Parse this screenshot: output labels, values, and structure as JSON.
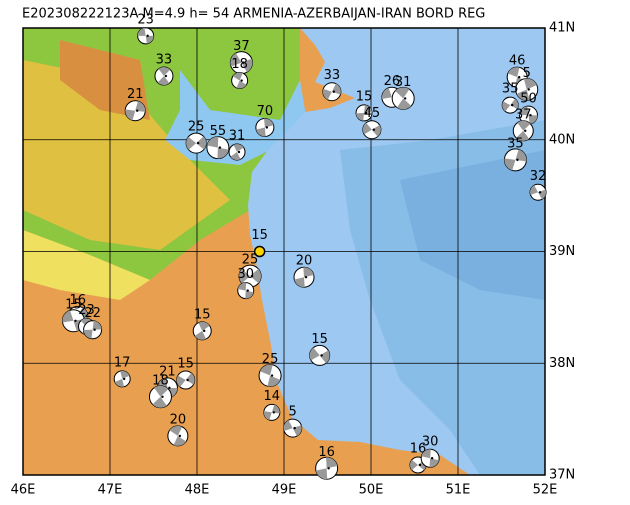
{
  "header": {
    "title": "E202308222123A M=4.9 h= 54 ARMENIA-AZERBAIJAN-IRAN BORD REG"
  },
  "map": {
    "lon_range": [
      46,
      52
    ],
    "lat_range": [
      37,
      41
    ],
    "lon_ticks": [
      {
        "value": 46,
        "label": "46E"
      },
      {
        "value": 47,
        "label": "47E"
      },
      {
        "value": 48,
        "label": "48E"
      },
      {
        "value": 49,
        "label": "49E"
      },
      {
        "value": 50,
        "label": "50E"
      },
      {
        "value": 51,
        "label": "51E"
      },
      {
        "value": 52,
        "label": "52E"
      }
    ],
    "lat_ticks": [
      {
        "value": 37,
        "label": "37N"
      },
      {
        "value": 38,
        "label": "38N"
      },
      {
        "value": 39,
        "label": "39N"
      },
      {
        "value": 40,
        "label": "40N"
      },
      {
        "value": 41,
        "label": "41N"
      }
    ]
  },
  "events": [
    {
      "lon": 47.41,
      "lat": 40.93,
      "depth": 23
    },
    {
      "lon": 47.62,
      "lat": 40.57,
      "depth": 33
    },
    {
      "lon": 47.29,
      "lat": 40.26,
      "depth": 21
    },
    {
      "lon": 48.51,
      "lat": 40.69,
      "depth": 37
    },
    {
      "lon": 48.49,
      "lat": 40.53,
      "depth": 18
    },
    {
      "lon": 48.78,
      "lat": 40.11,
      "depth": 70
    },
    {
      "lon": 47.99,
      "lat": 39.97,
      "depth": 25
    },
    {
      "lon": 48.24,
      "lat": 39.93,
      "depth": 55
    },
    {
      "lon": 48.46,
      "lat": 39.89,
      "depth": 31
    },
    {
      "lon": 49.55,
      "lat": 40.43,
      "depth": 33
    },
    {
      "lon": 50.24,
      "lat": 40.38,
      "depth": 26
    },
    {
      "lon": 50.37,
      "lat": 40.37,
      "depth": 31
    },
    {
      "lon": 49.92,
      "lat": 40.24,
      "depth": 15
    },
    {
      "lon": 50.01,
      "lat": 40.09,
      "depth": 45
    },
    {
      "lon": 51.68,
      "lat": 40.56,
      "depth": 46
    },
    {
      "lon": 51.79,
      "lat": 40.45,
      "depth": 5
    },
    {
      "lon": 51.6,
      "lat": 40.31,
      "depth": 35
    },
    {
      "lon": 51.81,
      "lat": 40.22,
      "depth": 50
    },
    {
      "lon": 51.75,
      "lat": 40.08,
      "depth": 37
    },
    {
      "lon": 51.66,
      "lat": 39.82,
      "depth": 35
    },
    {
      "lon": 51.92,
      "lat": 39.53,
      "depth": 32
    },
    {
      "lon": 48.72,
      "lat": 39.0,
      "depth": 15,
      "color": "#ffd400"
    },
    {
      "lon": 49.23,
      "lat": 38.77,
      "depth": 20
    },
    {
      "lon": 48.61,
      "lat": 38.78,
      "depth": 25
    },
    {
      "lon": 48.56,
      "lat": 38.65,
      "depth": 30
    },
    {
      "lon": 48.06,
      "lat": 38.29,
      "depth": 15
    },
    {
      "lon": 46.63,
      "lat": 38.42,
      "depth": 16
    },
    {
      "lon": 46.58,
      "lat": 38.38,
      "depth": 15
    },
    {
      "lon": 46.73,
      "lat": 38.33,
      "depth": 23
    },
    {
      "lon": 46.8,
      "lat": 38.3,
      "depth": 22
    },
    {
      "lon": 49.41,
      "lat": 38.07,
      "depth": 15
    },
    {
      "lon": 48.84,
      "lat": 37.89,
      "depth": 25
    },
    {
      "lon": 47.14,
      "lat": 37.86,
      "depth": 17
    },
    {
      "lon": 47.87,
      "lat": 37.85,
      "depth": 15
    },
    {
      "lon": 47.66,
      "lat": 37.78,
      "depth": 21
    },
    {
      "lon": 47.58,
      "lat": 37.7,
      "depth": 18
    },
    {
      "lon": 48.86,
      "lat": 37.56,
      "depth": 14
    },
    {
      "lon": 49.1,
      "lat": 37.42,
      "depth": 5
    },
    {
      "lon": 47.78,
      "lat": 37.35,
      "depth": 20
    },
    {
      "lon": 49.49,
      "lat": 37.06,
      "depth": 16
    },
    {
      "lon": 50.54,
      "lat": 37.09,
      "depth": 16
    },
    {
      "lon": 50.68,
      "lat": 37.15,
      "depth": 30
    }
  ]
}
